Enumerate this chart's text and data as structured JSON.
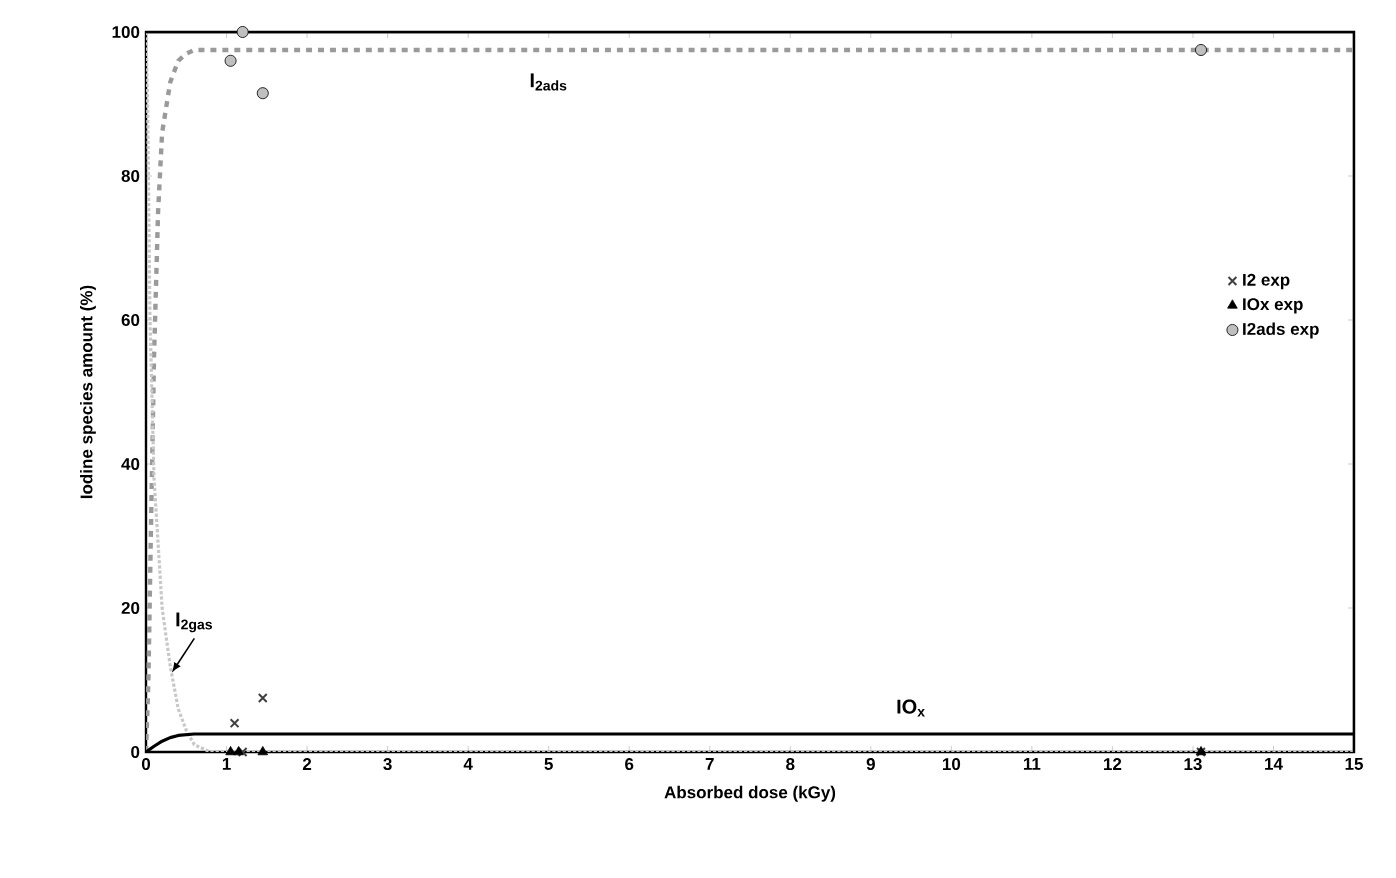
{
  "chart_data": {
    "type": "line",
    "xlabel": "Absorbed dose (kGy)",
    "ylabel": "Iodine species amount (%)",
    "xlim": [
      0,
      15
    ],
    "ylim": [
      0,
      100
    ],
    "xticks": [
      0,
      1,
      2,
      3,
      4,
      5,
      6,
      7,
      8,
      9,
      10,
      11,
      12,
      13,
      14,
      15
    ],
    "yticks": [
      0,
      20,
      40,
      60,
      80,
      100
    ],
    "legend": "right",
    "grid": false,
    "series": [
      {
        "name": "I$_{2ads}$",
        "color": "#9a9a9a",
        "line_style": "dashed",
        "marker": "none",
        "x": [
          0,
          0.03,
          0.06,
          0.1,
          0.15,
          0.2,
          0.3,
          0.4,
          0.5,
          0.6,
          0.8,
          15
        ],
        "values": [
          0,
          10,
          30,
          55,
          75,
          86,
          93,
          96,
          97,
          97.5,
          97.5,
          97.5
        ]
      },
      {
        "name": "I$_{2gas}$",
        "color": "#c8c8c8",
        "line_style": "dotted",
        "marker": "none",
        "x": [
          0,
          0.02,
          0.05,
          0.1,
          0.2,
          0.3,
          0.4,
          0.5,
          0.6,
          0.8,
          15
        ],
        "values": [
          100,
          90,
          60,
          38,
          20,
          12,
          6,
          3,
          1,
          0,
          0
        ]
      },
      {
        "name": "IO$_{x}$",
        "color": "#000000",
        "line_style": "solid",
        "marker": "none",
        "x": [
          0,
          0.1,
          0.2,
          0.3,
          0.4,
          0.6,
          15
        ],
        "values": [
          0,
          0.8,
          1.5,
          2,
          2.3,
          2.5,
          2.5
        ]
      },
      {
        "type": "scatter",
        "name": "I2 exp",
        "color": "#404040",
        "marker": "cross",
        "x": [
          1.1,
          1.45,
          1.2,
          13.1
        ],
        "values": [
          4,
          7.5,
          0,
          0
        ]
      },
      {
        "type": "scatter",
        "name": "IOx exp",
        "color": "#000000",
        "marker": "triangle",
        "x": [
          1.05,
          1.15,
          1.45,
          13.1
        ],
        "values": [
          0,
          0,
          0,
          0
        ]
      },
      {
        "type": "scatter",
        "name": "I2ads exp",
        "color": "#bfbfbf",
        "marker": "circle",
        "x": [
          1.05,
          1.2,
          1.45,
          13.1
        ],
        "values": [
          96,
          100,
          91.5,
          97.5
        ]
      }
    ]
  }
}
